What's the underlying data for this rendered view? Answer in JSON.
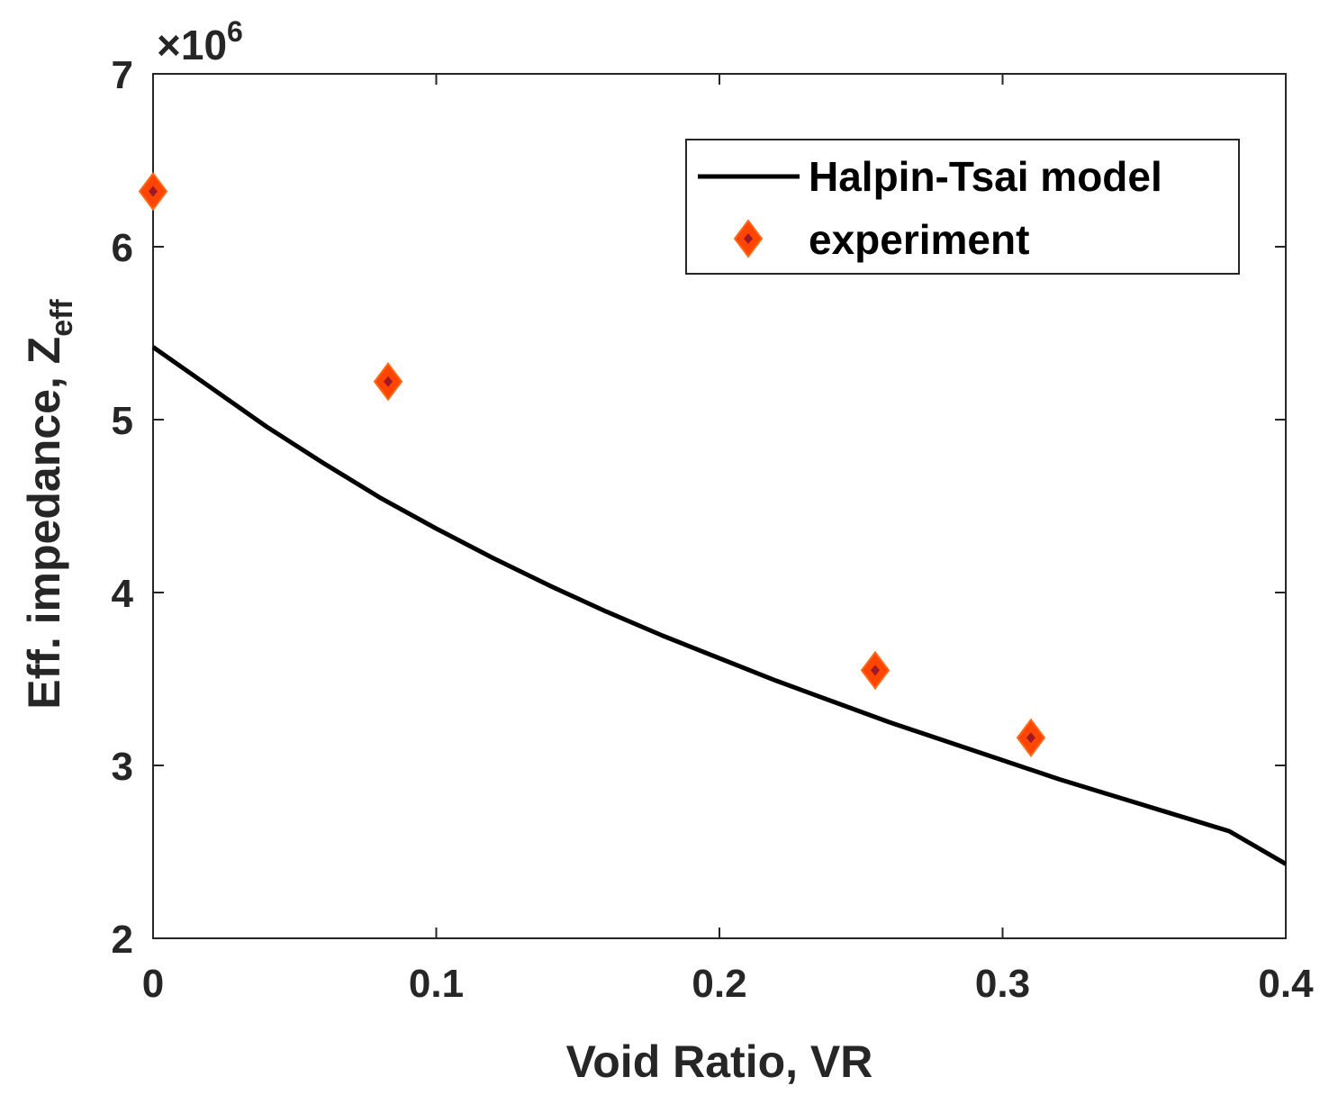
{
  "chart_data": {
    "type": "line",
    "title": "",
    "xlabel": "Void Ratio, VR",
    "ylabel": "Eff. impedance, Z",
    "ylabel_subscript": "eff",
    "y_exponent_prefix": "×10",
    "y_exponent_power": "6",
    "xlim": [
      0,
      0.4
    ],
    "ylim": [
      2,
      7
    ],
    "x_ticks": [
      0,
      0.1,
      0.2,
      0.3,
      0.4
    ],
    "x_tick_labels": [
      "0",
      "0.1",
      "0.2",
      "0.3",
      "0.4"
    ],
    "y_ticks": [
      2,
      3,
      4,
      5,
      6,
      7
    ],
    "y_tick_labels": [
      "2",
      "3",
      "4",
      "5",
      "6",
      "7"
    ],
    "y_scale": 1000000,
    "grid": false,
    "legend_position": "top-right",
    "series": [
      {
        "name": "Halpin-Tsai model",
        "kind": "line",
        "color": "#000000",
        "x": [
          0,
          0.02,
          0.04,
          0.06,
          0.08,
          0.1,
          0.12,
          0.14,
          0.16,
          0.18,
          0.2,
          0.22,
          0.24,
          0.26,
          0.28,
          0.3,
          0.32,
          0.34,
          0.36,
          0.38,
          0.4
        ],
        "y": [
          5.42,
          5.19,
          4.96,
          4.75,
          4.55,
          4.37,
          4.2,
          4.04,
          3.89,
          3.75,
          3.62,
          3.49,
          3.37,
          3.25,
          3.14,
          3.03,
          2.92,
          2.82,
          2.72,
          2.62,
          2.43
        ]
      },
      {
        "name": "experiment",
        "kind": "scatter",
        "marker": "diamond",
        "color": "#ff4500",
        "inner_color": "#a01828",
        "x": [
          0,
          0.083,
          0.255,
          0.31
        ],
        "y": [
          6.32,
          5.22,
          3.55,
          3.16
        ]
      }
    ]
  }
}
